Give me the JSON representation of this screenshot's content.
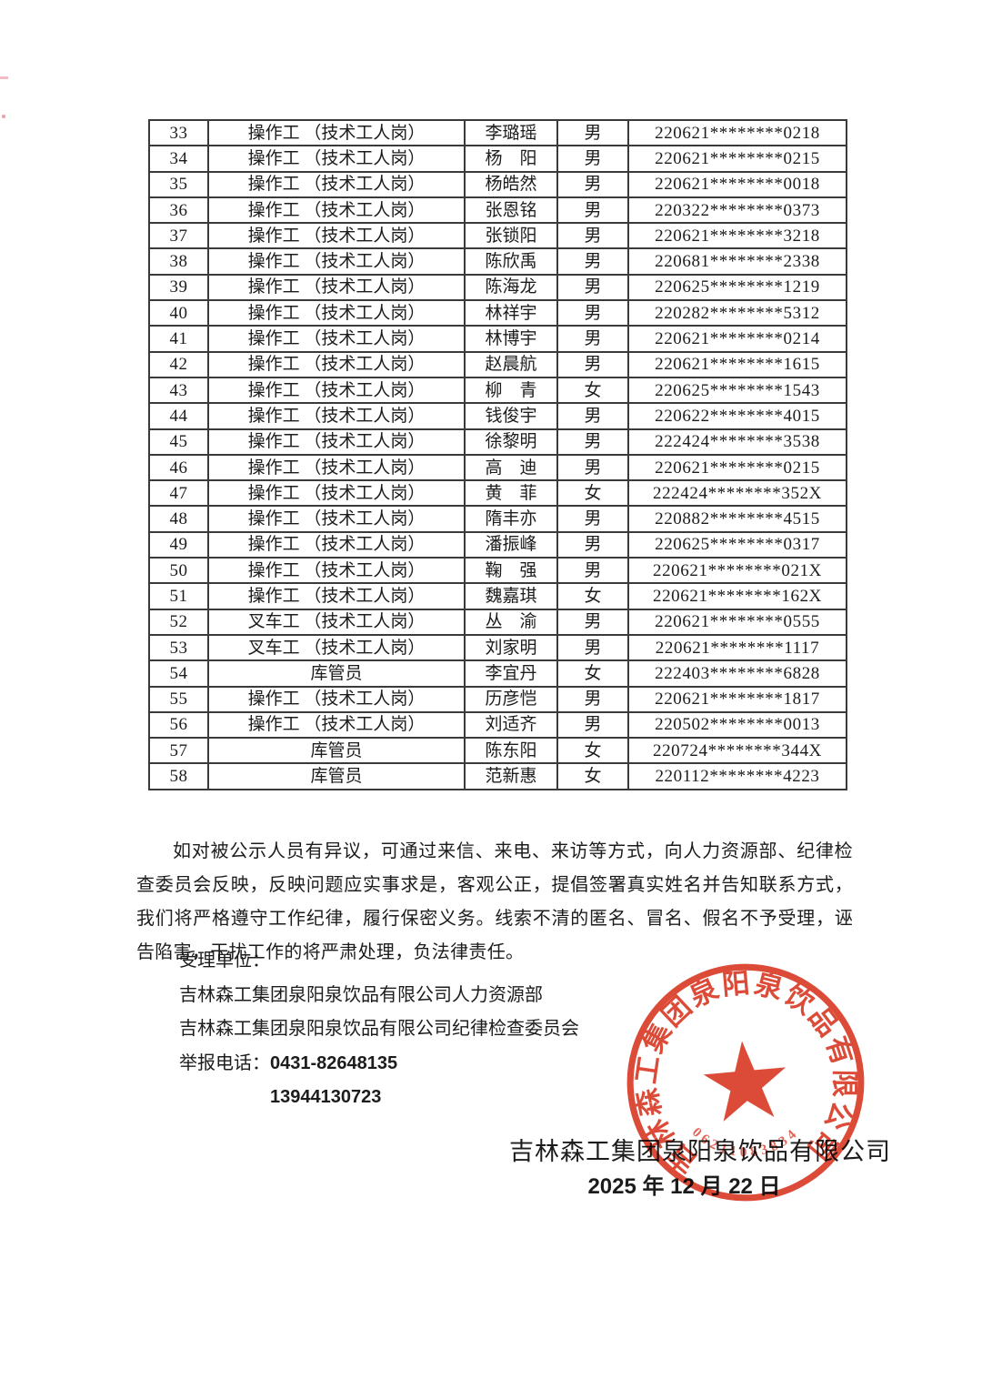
{
  "table": {
    "rows": [
      {
        "no": "33",
        "position": "操作工 （技术工人岗）",
        "name": "李璐瑶",
        "gender": "男",
        "id_number": "220621********0218"
      },
      {
        "no": "34",
        "position": "操作工 （技术工人岗）",
        "name": "杨　阳",
        "gender": "男",
        "id_number": "220621********0215"
      },
      {
        "no": "35",
        "position": "操作工 （技术工人岗）",
        "name": "杨皓然",
        "gender": "男",
        "id_number": "220621********0018"
      },
      {
        "no": "36",
        "position": "操作工 （技术工人岗）",
        "name": "张恩铭",
        "gender": "男",
        "id_number": "220322********0373"
      },
      {
        "no": "37",
        "position": "操作工 （技术工人岗）",
        "name": "张锁阳",
        "gender": "男",
        "id_number": "220621********3218"
      },
      {
        "no": "38",
        "position": "操作工 （技术工人岗）",
        "name": "陈欣禹",
        "gender": "男",
        "id_number": "220681********2338"
      },
      {
        "no": "39",
        "position": "操作工 （技术工人岗）",
        "name": "陈海龙",
        "gender": "男",
        "id_number": "220625********1219"
      },
      {
        "no": "40",
        "position": "操作工 （技术工人岗）",
        "name": "林祥宇",
        "gender": "男",
        "id_number": "220282********5312"
      },
      {
        "no": "41",
        "position": "操作工 （技术工人岗）",
        "name": "林博宇",
        "gender": "男",
        "id_number": "220621********0214"
      },
      {
        "no": "42",
        "position": "操作工 （技术工人岗）",
        "name": "赵晨航",
        "gender": "男",
        "id_number": "220621********1615"
      },
      {
        "no": "43",
        "position": "操作工 （技术工人岗）",
        "name": "柳　青",
        "gender": "女",
        "id_number": "220625********1543"
      },
      {
        "no": "44",
        "position": "操作工 （技术工人岗）",
        "name": "钱俊宇",
        "gender": "男",
        "id_number": "220622********4015"
      },
      {
        "no": "45",
        "position": "操作工 （技术工人岗）",
        "name": "徐黎明",
        "gender": "男",
        "id_number": "222424********3538"
      },
      {
        "no": "46",
        "position": "操作工 （技术工人岗）",
        "name": "高　迪",
        "gender": "男",
        "id_number": "220621********0215"
      },
      {
        "no": "47",
        "position": "操作工 （技术工人岗）",
        "name": "黄　菲",
        "gender": "女",
        "id_number": "222424********352X"
      },
      {
        "no": "48",
        "position": "操作工 （技术工人岗）",
        "name": "隋丰亦",
        "gender": "男",
        "id_number": "220882********4515"
      },
      {
        "no": "49",
        "position": "操作工 （技术工人岗）",
        "name": "潘振峰",
        "gender": "男",
        "id_number": "220625********0317"
      },
      {
        "no": "50",
        "position": "操作工 （技术工人岗）",
        "name": "鞠　强",
        "gender": "男",
        "id_number": "220621********021X"
      },
      {
        "no": "51",
        "position": "操作工 （技术工人岗）",
        "name": "魏嘉琪",
        "gender": "女",
        "id_number": "220621********162X"
      },
      {
        "no": "52",
        "position": "叉车工 （技术工人岗）",
        "name": "丛　渝",
        "gender": "男",
        "id_number": "220621********0555"
      },
      {
        "no": "53",
        "position": "叉车工 （技术工人岗）",
        "name": "刘家明",
        "gender": "男",
        "id_number": "220621********1117"
      },
      {
        "no": "54",
        "position": "库管员",
        "name": "李宜丹",
        "gender": "女",
        "id_number": "222403********6828"
      },
      {
        "no": "55",
        "position": "操作工 （技术工人岗）",
        "name": "历彦恺",
        "gender": "男",
        "id_number": "220621********1817"
      },
      {
        "no": "56",
        "position": "操作工 （技术工人岗）",
        "name": "刘适齐",
        "gender": "男",
        "id_number": "220502********0013"
      },
      {
        "no": "57",
        "position": "库管员",
        "name": "陈东阳",
        "gender": "女",
        "id_number": "220724********344X"
      },
      {
        "no": "58",
        "position": "库管员",
        "name": "范新惠",
        "gender": "女",
        "id_number": "220112********4223"
      }
    ]
  },
  "notice_paragraph": "如对被公示人员有异议，可通过来信、来电、来访等方式，向人力资源部、纪律检查委员会反映，反映问题应实事求是，客观公正，提倡签署真实姓名并告知联系方式，我们将严格遵守工作纪律，履行保密义务。线索不清的匿名、冒名、假名不予受理，诬告陷害，干扰工作的将严肃处理，负法律责任。",
  "acceptance": {
    "label": "受理单位：",
    "org1": "吉林森工集团泉阳泉饮品有限公司人力资源部",
    "org2": "吉林森工集团泉阳泉饮品有限公司纪律检查委员会",
    "hotline_label": "举报电话：",
    "phone1": "0431-82648135",
    "phone2": "13944130723"
  },
  "signature": {
    "company": "吉林森工集团泉阳泉饮品有限公司",
    "date": "2025 年 12 月 22 日"
  },
  "seal": {
    "ring_text": "吉林森工集团泉阳泉饮品有限公司",
    "serial": "06211083834",
    "color": "#d93b27"
  }
}
